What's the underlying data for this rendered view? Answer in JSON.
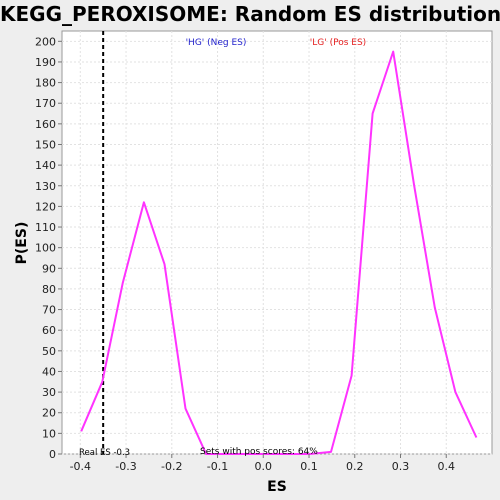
{
  "chart_data": {
    "type": "line",
    "title": "KEGG_PEROXISOME: Random ES distribution",
    "xlabel": "ES",
    "ylabel": "P(ES)",
    "xlim": [
      -0.44,
      0.5
    ],
    "ylim": [
      0,
      205
    ],
    "x_ticks": [
      -0.4,
      -0.3,
      -0.2,
      -0.1,
      0.0,
      0.1,
      0.2,
      0.3,
      0.4
    ],
    "x_tick_labels": [
      "-0.4",
      "-0.3",
      "-0.2",
      "-0.1",
      "0.0",
      "0.1",
      "0.2",
      "0.3",
      "0.4"
    ],
    "y_ticks": [
      0,
      10,
      20,
      30,
      40,
      50,
      60,
      70,
      80,
      90,
      100,
      110,
      120,
      130,
      140,
      150,
      160,
      170,
      180,
      190,
      200
    ],
    "grid": true,
    "series": [
      {
        "color": "#ff33ff",
        "x": [
          -0.398,
          -0.352,
          -0.307,
          -0.261,
          -0.216,
          -0.17,
          -0.125,
          -0.08,
          -0.034,
          0.011,
          0.057,
          0.102,
          0.148,
          0.193,
          0.239,
          0.284,
          0.33,
          0.375,
          0.42,
          0.466
        ],
        "y": [
          11,
          35,
          83,
          122,
          92,
          22,
          0,
          0,
          0,
          0,
          0,
          0,
          1,
          38,
          165,
          195,
          130,
          71,
          30,
          8
        ]
      }
    ],
    "reference_line": {
      "x": -0.35,
      "style": "dashed",
      "color": "#000000"
    },
    "annotations": {
      "neg_label": "'HG' (Neg ES)",
      "neg_color": "#1f1fcc",
      "pos_label": "'LG' (Pos ES)",
      "pos_color": "#e52020",
      "real_es": "Real ES -0.3",
      "pos_scores": "Sets with pos scores: 64%"
    }
  }
}
